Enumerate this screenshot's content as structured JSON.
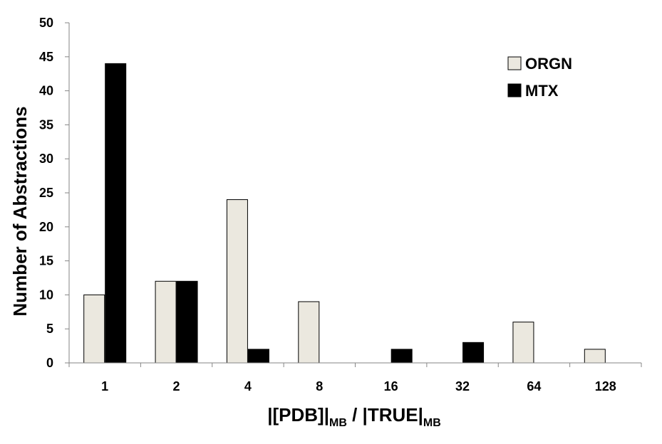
{
  "chart_data": {
    "type": "bar",
    "categories": [
      "1",
      "2",
      "4",
      "8",
      "16",
      "32",
      "64",
      "128"
    ],
    "series": [
      {
        "name": "ORGN",
        "color": "#ebe8df",
        "values": [
          10,
          12,
          24,
          9,
          0,
          0,
          6,
          2
        ]
      },
      {
        "name": "MTX",
        "color": "#000000",
        "values": [
          44,
          12,
          2,
          0,
          2,
          3,
          0,
          0
        ]
      }
    ],
    "ylim": [
      0,
      50
    ],
    "yticks": [
      0,
      5,
      10,
      15,
      20,
      25,
      30,
      35,
      40,
      45,
      50
    ],
    "ylabel": "Number of Abstractions",
    "xlabel": {
      "part1": "|[PDB]|",
      "sub1": "MB",
      "part2": " / |TRUE|",
      "sub2": "MB"
    },
    "grid": false,
    "legend_position": "top-right"
  }
}
